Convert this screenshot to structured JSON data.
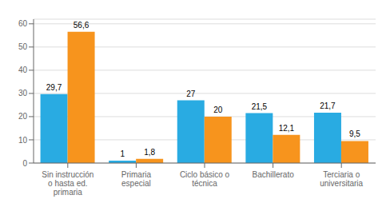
{
  "chart_data": {
    "type": "bar",
    "categories": [
      "Sin instrucción\no hasta ed.\nprimaria",
      "Primaria\nespecial",
      "Ciclo básico o\ntécnica",
      "Bachillerato",
      "Terciaria o\nuniversitaria"
    ],
    "series": [
      {
        "color": "#29ABE2",
        "values": [
          29.7,
          1.0,
          27.0,
          21.5,
          21.7
        ],
        "value_labels": [
          "29,7",
          "1",
          "27",
          "21,5",
          "21,7"
        ]
      },
      {
        "color": "#F7941D",
        "values": [
          56.6,
          1.8,
          20.0,
          12.1,
          9.5
        ],
        "value_labels": [
          "56,6",
          "1,8",
          "20",
          "12,1",
          "9,5"
        ]
      }
    ],
    "ylim": [
      0,
      62
    ],
    "yticks": [
      0,
      10,
      20,
      30,
      40,
      50,
      60
    ],
    "grid": true,
    "data_labels": true
  }
}
